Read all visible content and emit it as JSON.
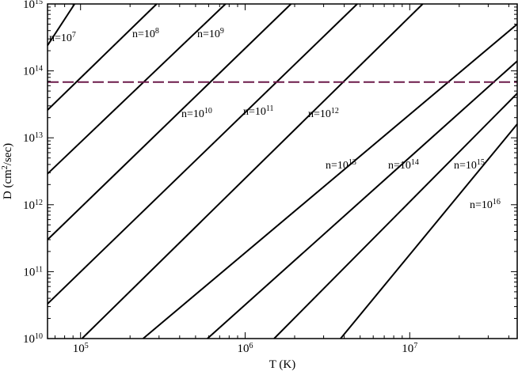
{
  "chart_data": {
    "type": "line",
    "title": "",
    "xlabel": "T (K)",
    "ylabel": "D (cm2/sec)",
    "ylabel_parts": {
      "pre": "D (cm",
      "sup": "2",
      "post": "/sec)"
    },
    "x_scale": "log",
    "y_scale": "log",
    "xlim": [
      63000,
      45000000
    ],
    "ylim": [
      10000000000.0,
      1000000000000000.0
    ],
    "x_ticks": [
      {
        "base": "10",
        "exp": "5",
        "value": 100000
      },
      {
        "base": "10",
        "exp": "6",
        "value": 1000000
      },
      {
        "base": "10",
        "exp": "7",
        "value": 10000000
      }
    ],
    "y_ticks": [
      {
        "base": "10",
        "exp": "10",
        "value": 10000000000.0
      },
      {
        "base": "10",
        "exp": "11",
        "value": 100000000000.0
      },
      {
        "base": "10",
        "exp": "12",
        "value": 1000000000000.0
      },
      {
        "base": "10",
        "exp": "13",
        "value": 10000000000000.0
      },
      {
        "base": "10",
        "exp": "14",
        "value": 100000000000000.0
      },
      {
        "base": "10",
        "exp": "15",
        "value": 1000000000000000.0
      }
    ],
    "grid": false,
    "series": [
      {
        "name": "n=10^7",
        "label_pre": "n=10",
        "label_exp": "7",
        "x": [
          63000,
          92000
        ],
        "y": [
          240000000000000.0,
          1000000000000000.0
        ]
      },
      {
        "name": "n=10^8",
        "label_pre": "n=10",
        "label_exp": "8",
        "x": [
          63000,
          290000
        ],
        "y": [
          26000000000000.0,
          1000000000000000.0
        ]
      },
      {
        "name": "n=10^9",
        "label_pre": "n=10",
        "label_exp": "9",
        "x": [
          63000,
          760000
        ],
        "y": [
          2900000000000.0,
          1000000000000000.0
        ]
      },
      {
        "name": "n=10^10",
        "label_pre": "n=10",
        "label_exp": "10",
        "x": [
          63000,
          1900000
        ],
        "y": [
          300000000000.0,
          1000000000000000.0
        ]
      },
      {
        "name": "n=10^11",
        "label_pre": "n=10",
        "label_exp": "11",
        "x": [
          63000,
          4800000
        ],
        "y": [
          33000000000.0,
          1000000000000000.0
        ]
      },
      {
        "name": "n=10^12",
        "label_pre": "n=10",
        "label_exp": "12",
        "x": [
          102000,
          12000000
        ],
        "y": [
          10000000000.0,
          1000000000000000.0
        ]
      },
      {
        "name": "n=10^13",
        "label_pre": "n=10",
        "label_exp": "13",
        "x": [
          240000,
          45000000
        ],
        "y": [
          10000000000.0,
          500000000000000.0
        ]
      },
      {
        "name": "n=10^14",
        "label_pre": "n=10",
        "label_exp": "14",
        "x": [
          590000,
          45000000
        ],
        "y": [
          10000000000.0,
          140000000000000.0
        ]
      },
      {
        "name": "n=10^15",
        "label_pre": "n=10",
        "label_exp": "15",
        "x": [
          1500000,
          45000000
        ],
        "y": [
          10000000000.0,
          46000000000000.0
        ]
      },
      {
        "name": "n=10^16",
        "label_pre": "n=10",
        "label_exp": "16",
        "x": [
          3800000,
          45000000
        ],
        "y": [
          10000000000.0,
          16000000000000.0
        ]
      }
    ],
    "reference_line": {
      "style": "dashed",
      "color": "#6b1a4a",
      "y": 68000000000000.0
    }
  }
}
